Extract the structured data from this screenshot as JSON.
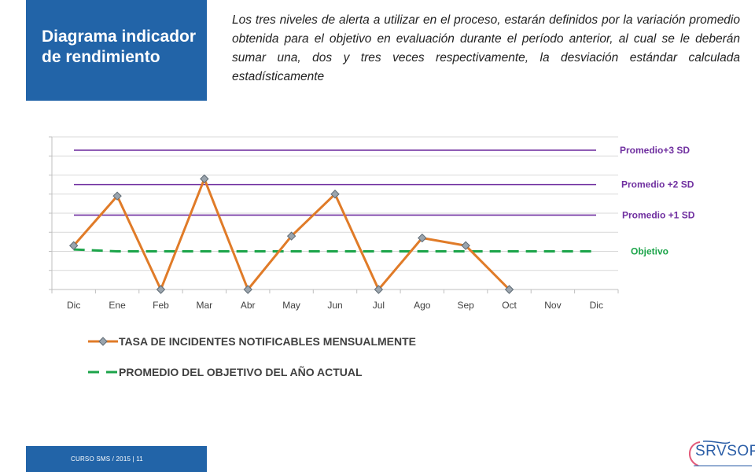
{
  "slide": {
    "title": "Diagrama indicador de rendimiento",
    "intro": "Los tres niveles de alerta a utilizar en el proceso, estarán definidos por la variación promedio obtenida para el objetivo en evaluación durante el período anterior, al cual se le deberán sumar una, dos y tres veces respectivamente, la desviación estándar calculada estadísticamente",
    "footer": "CURSO SMS / 2015   |   11",
    "logo_text": "SRVSOP"
  },
  "colors": {
    "brand_blue": "#2264a8",
    "series_orange": "#e07b28",
    "objective_green": "#1ca44a",
    "sd_purple": "#7030a0",
    "marker_gray": "#9aa4ad"
  },
  "chart_data": {
    "type": "line",
    "categories": [
      "Dic",
      "Ene",
      "Feb",
      "Mar",
      "Abr",
      "May",
      "Jun",
      "Jul",
      "Ago",
      "Sep",
      "Oct",
      "Nov",
      "Dic"
    ],
    "ylim": [
      0,
      8
    ],
    "grid": true,
    "series": [
      {
        "name": "TASA DE INCIDENTES NOTIFICABLES MENSUALMENTE",
        "style": "solid-diamond",
        "values": [
          2.3,
          4.9,
          0,
          5.8,
          0,
          2.8,
          5.0,
          0,
          2.7,
          2.3,
          0,
          null,
          null
        ]
      },
      {
        "name": "PROMEDIO DEL OBJETIVO DEL AÑO ACTUAL",
        "style": "dashed",
        "values": [
          2.1,
          2.0,
          2.0,
          2.0,
          2.0,
          2.0,
          2.0,
          2.0,
          2.0,
          2.0,
          2.0,
          2.0,
          2.0
        ]
      }
    ],
    "reference_lines": [
      {
        "label": "Promedio+3 SD",
        "value": 7.3,
        "color": "#7030a0"
      },
      {
        "label": "Promedio +2 SD",
        "value": 5.5,
        "color": "#7030a0"
      },
      {
        "label": "Promedio +1 SD",
        "value": 3.9,
        "color": "#7030a0"
      },
      {
        "label": "Objetivo",
        "value": 2.0,
        "color": "#1ca44a"
      }
    ]
  }
}
